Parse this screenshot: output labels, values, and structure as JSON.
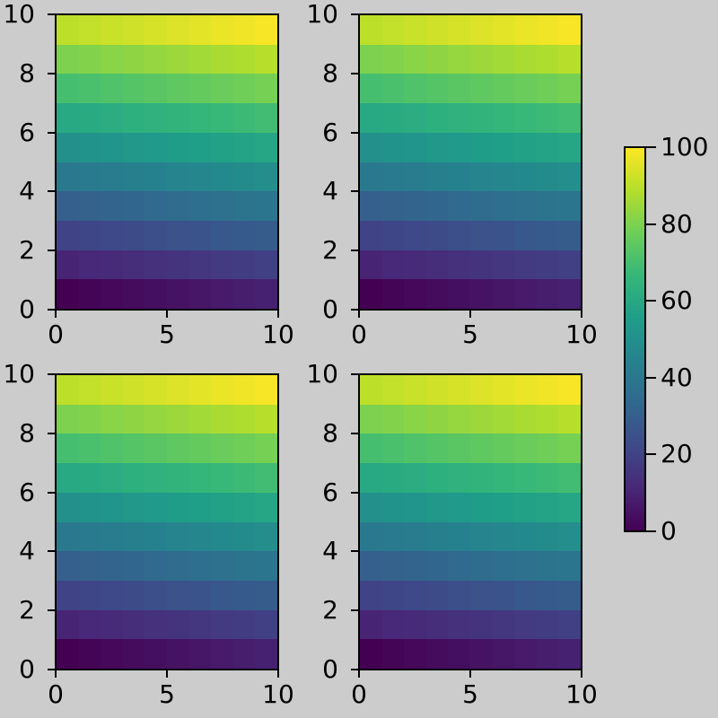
{
  "figure": {
    "background_color": "#cccccc",
    "panels": [
      "top-left",
      "top-right",
      "bottom-left",
      "bottom-right"
    ]
  },
  "chart_data": {
    "type": "heatmap",
    "title": "",
    "layout": "2x2 grid of four identical 10x10 pcolormesh panels sharing one vertical colorbar on the right",
    "colormap": "viridis",
    "vmin": 0,
    "vmax": 100,
    "x_range": [
      0,
      10
    ],
    "y_range": [
      0,
      10
    ],
    "x_ticks": [
      0,
      5,
      10
    ],
    "y_ticks": [
      0,
      2,
      4,
      6,
      8,
      10
    ],
    "values_row_order": "bottom-to-top",
    "values": [
      [
        0,
        1,
        2,
        3,
        4,
        5,
        6,
        7,
        8,
        9
      ],
      [
        10,
        11,
        12,
        13,
        14,
        15,
        16,
        17,
        18,
        19
      ],
      [
        20,
        21,
        22,
        23,
        24,
        25,
        26,
        27,
        28,
        29
      ],
      [
        30,
        31,
        32,
        33,
        34,
        35,
        36,
        37,
        38,
        39
      ],
      [
        40,
        41,
        42,
        43,
        44,
        45,
        46,
        47,
        48,
        49
      ],
      [
        50,
        51,
        52,
        53,
        54,
        55,
        56,
        57,
        58,
        59
      ],
      [
        60,
        61,
        62,
        63,
        64,
        65,
        66,
        67,
        68,
        69
      ],
      [
        70,
        71,
        72,
        73,
        74,
        75,
        76,
        77,
        78,
        79
      ],
      [
        80,
        81,
        82,
        83,
        84,
        85,
        86,
        87,
        88,
        89
      ],
      [
        90,
        91,
        92,
        93,
        94,
        95,
        96,
        97,
        98,
        99
      ]
    ],
    "colorbar": {
      "side": "right",
      "min": 0,
      "max": 100,
      "ticks": [
        0,
        20,
        40,
        60,
        80,
        100
      ]
    }
  }
}
